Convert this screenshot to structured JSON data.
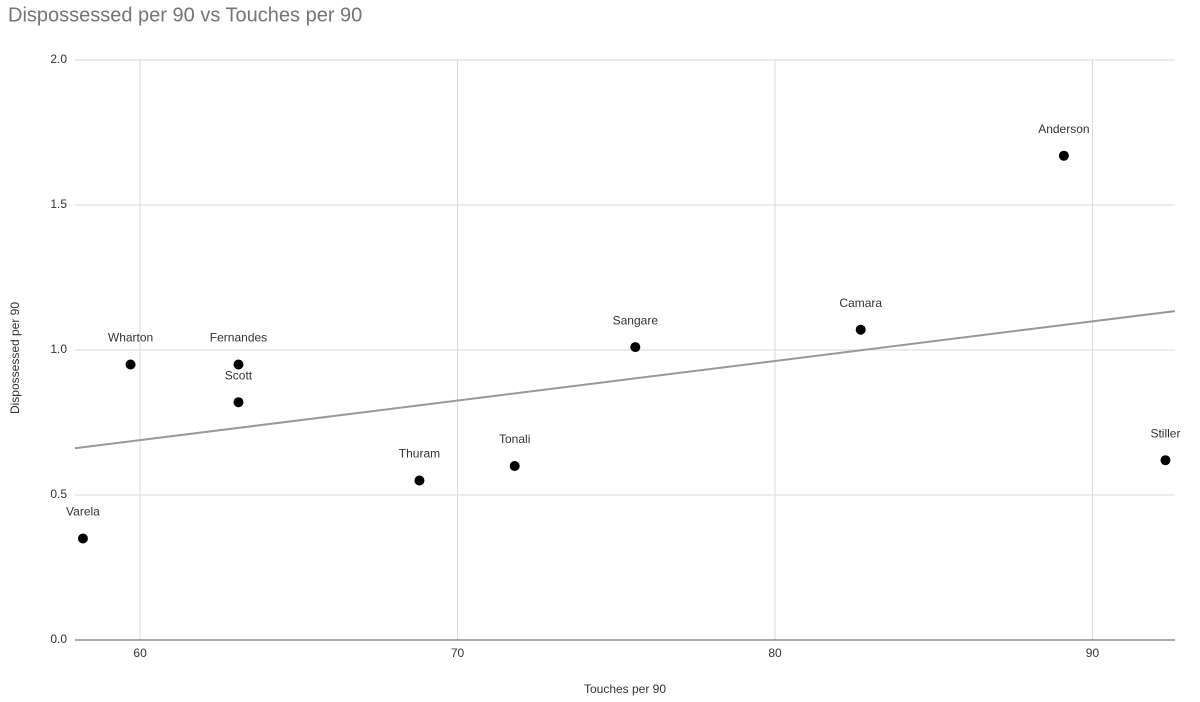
{
  "chart_data": {
    "type": "scatter",
    "title": "Dispossessed per 90 vs Touches per 90",
    "x_label": "Touches per 90",
    "y_label": "Dispossessed per 90",
    "x": [
      58.2,
      59.7,
      63.1,
      63.1,
      68.8,
      71.8,
      75.6,
      82.7,
      89.1,
      92.3
    ],
    "values": [
      0.35,
      0.95,
      0.95,
      0.82,
      0.55,
      0.6,
      1.01,
      1.07,
      1.67,
      0.62
    ],
    "labels": [
      "Varela",
      "Wharton",
      "Fernandes",
      "Scott",
      "Thuram",
      "Tonali",
      "Sangare",
      "Camara",
      "Anderson",
      "Stiller"
    ],
    "color": "#000000",
    "trendline": "linear",
    "trendline_color": "#999999",
    "xlim": [
      57.95,
      92.6
    ],
    "ylim": [
      0,
      2
    ],
    "xticks": [
      60,
      70,
      80,
      90
    ],
    "yticks": [
      {
        "value": 0,
        "label": "0.0"
      },
      {
        "value": 0.5,
        "label": "0.5"
      },
      {
        "value": 1,
        "label": "1.0"
      },
      {
        "value": 1.5,
        "label": "1.5"
      },
      {
        "value": 2,
        "label": "2.0"
      }
    ],
    "grid": true
  }
}
